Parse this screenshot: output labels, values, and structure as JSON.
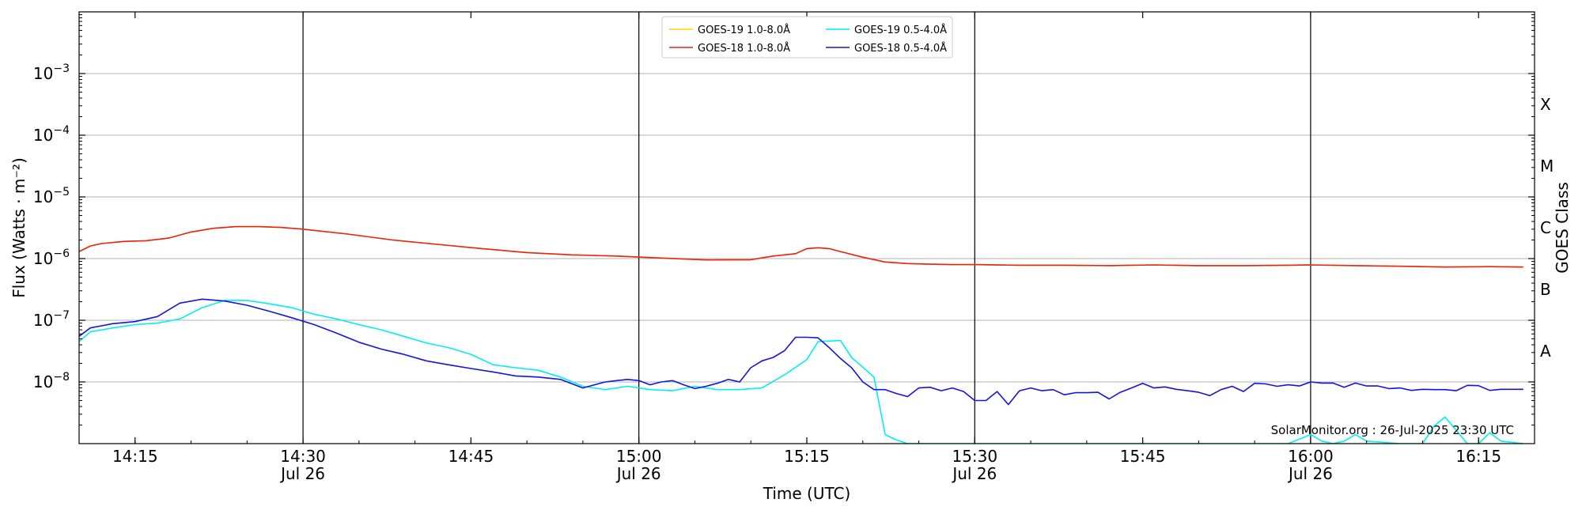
{
  "chart_data": {
    "type": "line",
    "xlabel": "Time (UTC)",
    "ylabel": "Flux (Watts · m⁻²)",
    "ylabel_right": "GOES Class",
    "y_scale": "log",
    "ylim": [
      1e-09,
      0.01
    ],
    "xlim": [
      "14:10",
      "16:20"
    ],
    "grid": "horizontal at decades",
    "legend_position": "top-center",
    "credit": "SolarMonitor.org : 26-Jul-2025 23:30 UTC",
    "x_ticks": [
      {
        "t": "14:15",
        "label": "14:15",
        "sub": ""
      },
      {
        "t": "14:30",
        "label": "14:30",
        "sub": "Jul 26"
      },
      {
        "t": "14:45",
        "label": "14:45",
        "sub": ""
      },
      {
        "t": "15:00",
        "label": "15:00",
        "sub": "Jul 26"
      },
      {
        "t": "15:15",
        "label": "15:15",
        "sub": ""
      },
      {
        "t": "15:30",
        "label": "15:30",
        "sub": "Jul 26"
      },
      {
        "t": "15:45",
        "label": "15:45",
        "sub": ""
      },
      {
        "t": "16:00",
        "label": "16:00",
        "sub": "Jul 26"
      },
      {
        "t": "16:15",
        "label": "16:15",
        "sub": ""
      }
    ],
    "vertical_lines": [
      "14:30",
      "15:00",
      "15:30",
      "16:00"
    ],
    "y_ticks": [
      {
        "value": 1e-08,
        "base": "10",
        "exp": "−8"
      },
      {
        "value": 1e-07,
        "base": "10",
        "exp": "−7"
      },
      {
        "value": 1e-06,
        "base": "10",
        "exp": "−6"
      },
      {
        "value": 1e-05,
        "base": "10",
        "exp": "−5"
      },
      {
        "value": 0.0001,
        "base": "10",
        "exp": "−4"
      },
      {
        "value": 0.001,
        "base": "10",
        "exp": "−3"
      }
    ],
    "goes_classes": [
      {
        "label": "A",
        "center": 3.16e-08
      },
      {
        "label": "B",
        "center": 3.16e-07
      },
      {
        "label": "C",
        "center": 3.16e-06
      },
      {
        "label": "M",
        "center": 3.16e-05
      },
      {
        "label": "X",
        "center": 0.000316
      }
    ],
    "series": [
      {
        "name": "GOES-19 1.0-8.0Å",
        "color": "#FFD700",
        "x": [
          "14:10",
          "14:11",
          "14:12",
          "14:14",
          "14:16",
          "14:18",
          "14:20",
          "14:22",
          "14:24",
          "14:26",
          "14:28",
          "14:30",
          "14:34",
          "14:38",
          "14:42",
          "14:46",
          "14:50",
          "14:54",
          "14:58",
          "15:02",
          "15:06",
          "15:10",
          "15:12",
          "15:14",
          "15:15",
          "15:16",
          "15:17",
          "15:18",
          "15:20",
          "15:22",
          "15:24",
          "15:26",
          "15:28",
          "15:30",
          "15:34",
          "15:38",
          "15:42",
          "15:46",
          "15:50",
          "15:54",
          "15:58",
          "16:00",
          "16:04",
          "16:08",
          "16:12",
          "16:16",
          "16:19"
        ],
        "y": [
          1.3e-06,
          1.6e-06,
          1.75e-06,
          1.9e-06,
          1.95e-06,
          2.15e-06,
          2.7e-06,
          3.1e-06,
          3.3e-06,
          3.3e-06,
          3.2e-06,
          3e-06,
          2.5e-06,
          2e-06,
          1.7e-06,
          1.45e-06,
          1.25e-06,
          1.15e-06,
          1.1e-06,
          1.02e-06,
          9.5e-07,
          9.6e-07,
          1.1e-06,
          1.2e-06,
          1.45e-06,
          1.5e-06,
          1.45e-06,
          1.3e-06,
          1.05e-06,
          8.8e-07,
          8.3e-07,
          8.1e-07,
          8e-07,
          8e-07,
          7.8e-07,
          7.8e-07,
          7.7e-07,
          7.9e-07,
          7.7e-07,
          7.7e-07,
          7.8e-07,
          7.9e-07,
          7.7e-07,
          7.5e-07,
          7.3e-07,
          7.4e-07,
          7.3e-07
        ]
      },
      {
        "name": "GOES-18 1.0-8.0Å",
        "color": "#E8241A",
        "x": [
          "14:10",
          "14:11",
          "14:12",
          "14:14",
          "14:16",
          "14:18",
          "14:20",
          "14:22",
          "14:24",
          "14:26",
          "14:28",
          "14:30",
          "14:34",
          "14:38",
          "14:42",
          "14:46",
          "14:50",
          "14:54",
          "14:58",
          "15:02",
          "15:06",
          "15:10",
          "15:12",
          "15:14",
          "15:15",
          "15:16",
          "15:17",
          "15:18",
          "15:20",
          "15:22",
          "15:24",
          "15:26",
          "15:28",
          "15:30",
          "15:34",
          "15:38",
          "15:42",
          "15:46",
          "15:50",
          "15:54",
          "15:58",
          "16:00",
          "16:04",
          "16:08",
          "16:12",
          "16:16",
          "16:19"
        ],
        "y": [
          1.3e-06,
          1.6e-06,
          1.75e-06,
          1.9e-06,
          1.95e-06,
          2.15e-06,
          2.7e-06,
          3.1e-06,
          3.3e-06,
          3.3e-06,
          3.2e-06,
          3e-06,
          2.5e-06,
          2e-06,
          1.7e-06,
          1.45e-06,
          1.25e-06,
          1.15e-06,
          1.1e-06,
          1.02e-06,
          9.5e-07,
          9.6e-07,
          1.1e-06,
          1.2e-06,
          1.45e-06,
          1.5e-06,
          1.45e-06,
          1.3e-06,
          1.05e-06,
          8.8e-07,
          8.3e-07,
          8.1e-07,
          8e-07,
          8e-07,
          7.8e-07,
          7.8e-07,
          7.7e-07,
          7.9e-07,
          7.7e-07,
          7.7e-07,
          7.8e-07,
          7.9e-07,
          7.7e-07,
          7.5e-07,
          7.3e-07,
          7.4e-07,
          7.3e-07
        ]
      },
      {
        "name": "GOES-19 0.5-4.0Å",
        "color": "#00F0F0",
        "x": [
          "14:10",
          "14:11",
          "14:13",
          "14:15",
          "14:17",
          "14:19",
          "14:21",
          "14:23",
          "14:25",
          "14:27",
          "14:29",
          "14:31",
          "14:33",
          "14:35",
          "14:37",
          "14:39",
          "14:41",
          "14:43",
          "14:45",
          "14:47",
          "14:49",
          "14:51",
          "14:53",
          "14:55",
          "14:57",
          "14:59",
          "15:01",
          "15:03",
          "15:05",
          "15:07",
          "15:09",
          "15:11",
          "15:13",
          "15:15",
          "15:16",
          "15:18",
          "15:19",
          "15:21",
          "15:22",
          "15:23",
          "15:24",
          "15:26",
          "15:30",
          "15:40",
          "15:50",
          "15:58",
          "16:00",
          "16:01",
          "16:02",
          "16:03",
          "16:04",
          "16:05",
          "16:08",
          "16:10",
          "16:11",
          "16:12",
          "16:14",
          "16:15",
          "16:16",
          "16:17",
          "16:19"
        ],
        "y": [
          4.5e-08,
          6.5e-08,
          7.5e-08,
          8.5e-08,
          9e-08,
          1.05e-07,
          1.6e-07,
          2.1e-07,
          2.1e-07,
          1.85e-07,
          1.6e-07,
          1.25e-07,
          1.05e-07,
          8.5e-08,
          7e-08,
          5.5e-08,
          4.3e-08,
          3.6e-08,
          2.8e-08,
          1.9e-08,
          1.7e-08,
          1.55e-08,
          1.2e-08,
          8.5e-09,
          7.5e-09,
          8.5e-09,
          7.5e-09,
          7.2e-09,
          8.5e-09,
          7.5e-09,
          7.5e-09,
          8e-09,
          1.3e-08,
          2.3e-08,
          4.5e-08,
          4.7e-08,
          2.5e-08,
          1.2e-08,
          1.4e-09,
          1.15e-09,
          1e-09,
          1e-09,
          1e-09,
          1e-09,
          1e-09,
          1e-09,
          1.4e-09,
          1.1e-09,
          1e-09,
          1.1e-09,
          1.4e-09,
          1.1e-09,
          1e-09,
          1e-09,
          1.9e-09,
          2.7e-09,
          1e-09,
          1e-09,
          1.5e-09,
          1.1e-09,
          1e-09
        ]
      },
      {
        "name": "GOES-18 0.5-4.0Å",
        "color": "#1414E0",
        "x": [
          "14:10",
          "14:11",
          "14:13",
          "14:15",
          "14:17",
          "14:19",
          "14:21",
          "14:23",
          "14:25",
          "14:27",
          "14:29",
          "14:31",
          "14:33",
          "14:35",
          "14:37",
          "14:39",
          "14:41",
          "14:43",
          "14:45",
          "14:47",
          "14:49",
          "14:51",
          "14:53",
          "14:55",
          "14:57",
          "14:58",
          "14:59",
          "15:00",
          "15:01",
          "15:02",
          "15:03",
          "15:04",
          "15:05",
          "15:06",
          "15:07",
          "15:08",
          "15:09",
          "15:10",
          "15:11",
          "15:12",
          "15:13",
          "15:14",
          "15:15",
          "15:16",
          "15:17",
          "15:18",
          "15:19",
          "15:20",
          "15:21",
          "15:22",
          "15:23",
          "15:24",
          "15:25",
          "15:26",
          "15:27",
          "15:28",
          "15:29",
          "15:30",
          "15:31",
          "15:32",
          "15:33",
          "15:34",
          "15:35",
          "15:36",
          "15:37",
          "15:38",
          "15:39",
          "15:40",
          "15:41",
          "15:42",
          "15:43",
          "15:44",
          "15:45",
          "15:46",
          "15:47",
          "15:48",
          "15:49",
          "15:50",
          "15:51",
          "15:52",
          "15:53",
          "15:54",
          "15:55",
          "15:56",
          "15:57",
          "15:58",
          "15:59",
          "16:00",
          "16:01",
          "16:02",
          "16:03",
          "16:04",
          "16:05",
          "16:06",
          "16:07",
          "16:08",
          "16:09",
          "16:10",
          "16:11",
          "16:12",
          "16:13",
          "16:14",
          "16:15",
          "16:16",
          "16:17",
          "16:18",
          "16:19"
        ],
        "y": [
          5.5e-08,
          7.5e-08,
          8.8e-08,
          9.5e-08,
          1.15e-07,
          1.9e-07,
          2.2e-07,
          2.05e-07,
          1.75e-07,
          1.4e-07,
          1.1e-07,
          8.5e-08,
          6.2e-08,
          4.4e-08,
          3.4e-08,
          2.8e-08,
          2.2e-08,
          1.9e-08,
          1.65e-08,
          1.45e-08,
          1.25e-08,
          1.2e-08,
          1.1e-08,
          8e-09,
          1e-08,
          1.05e-08,
          1.1e-08,
          1.05e-08,
          9e-09,
          1e-08,
          1.05e-08,
          9e-09,
          7.8e-09,
          8.5e-09,
          9.5e-09,
          1.1e-08,
          1e-08,
          1.7e-08,
          2.2e-08,
          2.5e-08,
          3.2e-08,
          5.3e-08,
          5.3e-08,
          5.2e-08,
          3.6e-08,
          2.4e-08,
          1.7e-08,
          1e-08,
          7.5e-09,
          7.5e-09,
          6.5e-09,
          5.8e-09,
          8e-09,
          8.2e-09,
          7.2e-09,
          8e-09,
          7e-09,
          5e-09,
          5e-09,
          7e-09,
          4.3e-09,
          7.2e-09,
          8e-09,
          7.2e-09,
          7.5e-09,
          6.2e-09,
          6.7e-09,
          6.7e-09,
          6.8e-09,
          5.3e-09,
          6.8e-09,
          8e-09,
          9.5e-09,
          8e-09,
          8.3e-09,
          7.6e-09,
          7.2e-09,
          6.8e-09,
          6e-09,
          7.5e-09,
          8.5e-09,
          7e-09,
          9.5e-09,
          9.3e-09,
          8.5e-09,
          9e-09,
          8.6e-09,
          1e-08,
          9.6e-09,
          9.6e-09,
          8.2e-09,
          9.6e-09,
          8.6e-09,
          8.6e-09,
          7.8e-09,
          8e-09,
          7.3e-09,
          7.6e-09,
          7.5e-09,
          7.5e-09,
          7.2e-09,
          8.8e-09,
          8.7e-09,
          7.3e-09,
          7.6e-09,
          7.6e-09,
          7.6e-09
        ]
      }
    ]
  }
}
